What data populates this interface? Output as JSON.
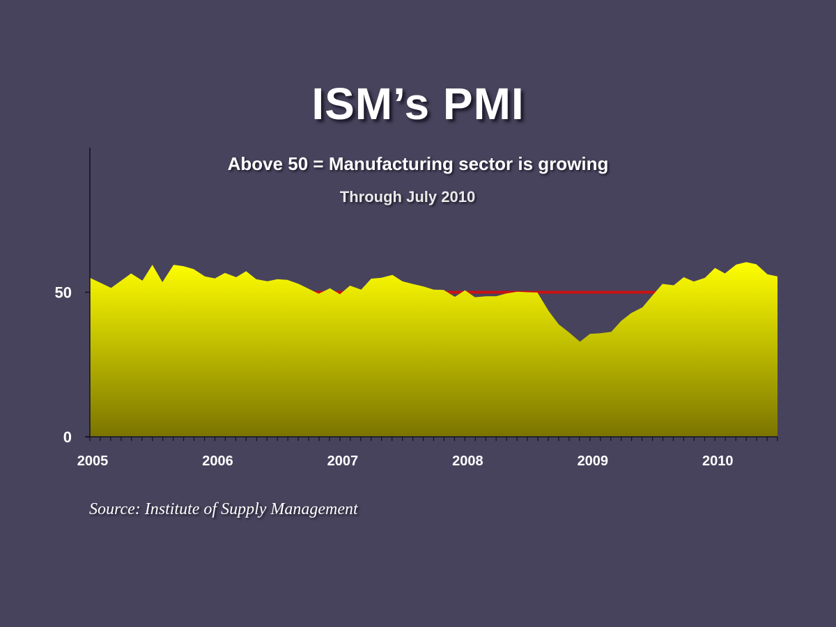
{
  "title": "ISM’s PMI",
  "subtitle": "Above 50 = Manufacturing sector is growing",
  "note": "Through July 2010",
  "source": "Source: Institute of Supply Management",
  "colors": {
    "background": "#48435c",
    "fill_top": "#ffff00",
    "fill_bottom": "#7a7400",
    "reference_line": "#cc1111",
    "text": "#ffffff"
  },
  "chart_data": {
    "type": "area",
    "title": "ISM’s PMI",
    "subtitle": "Above 50 = Manufacturing sector is growing",
    "xlim": [
      2005.0,
      2010.5
    ],
    "ylim": [
      0,
      100
    ],
    "y_ticks": [
      0,
      50
    ],
    "x_ticks": [
      2005,
      2006,
      2007,
      2008,
      2009,
      2010
    ],
    "reference_line": {
      "y": 50
    },
    "grid": false,
    "legend": "none",
    "series": [
      {
        "x": [
          2005.0,
          2005.17,
          2005.33,
          2005.42,
          2005.5,
          2005.58,
          2005.67,
          2005.75,
          2005.83,
          2005.92,
          2006.0,
          2006.08,
          2006.17,
          2006.25,
          2006.33,
          2006.42,
          2006.5,
          2006.58,
          2006.67,
          2006.75,
          2006.83,
          2006.92,
          2007.0,
          2007.08,
          2007.17,
          2007.25,
          2007.33,
          2007.42,
          2007.5,
          2007.58,
          2007.67,
          2007.75,
          2007.83,
          2007.92,
          2008.0,
          2008.08,
          2008.17,
          2008.25,
          2008.33,
          2008.42,
          2008.5,
          2008.58,
          2008.67,
          2008.75,
          2008.83,
          2008.92,
          2009.0,
          2009.08,
          2009.17,
          2009.25,
          2009.33,
          2009.42,
          2009.5,
          2009.58,
          2009.67,
          2009.75,
          2009.83,
          2009.92,
          2010.0,
          2010.08,
          2010.17,
          2010.25,
          2010.33,
          2010.42,
          2010.5
        ],
        "values": [
          55.0,
          51.5,
          56.5,
          54.0,
          59.5,
          53.5,
          59.5,
          59.0,
          58.0,
          55.5,
          54.8,
          56.7,
          55.2,
          57.3,
          54.5,
          53.8,
          54.5,
          54.3,
          52.9,
          51.2,
          49.5,
          51.4,
          49.3,
          52.3,
          50.9,
          54.7,
          55.0,
          56.0,
          53.8,
          52.9,
          52.0,
          50.9,
          50.8,
          48.4,
          50.7,
          48.3,
          48.6,
          48.6,
          49.6,
          50.2,
          50.0,
          49.9,
          43.5,
          38.9,
          36.2,
          32.9,
          35.6,
          35.8,
          36.3,
          40.1,
          42.8,
          44.8,
          48.9,
          52.9,
          52.4,
          55.2,
          53.7,
          55.0,
          58.4,
          56.5,
          59.6,
          60.4,
          59.7,
          56.2,
          55.5
        ]
      }
    ]
  }
}
